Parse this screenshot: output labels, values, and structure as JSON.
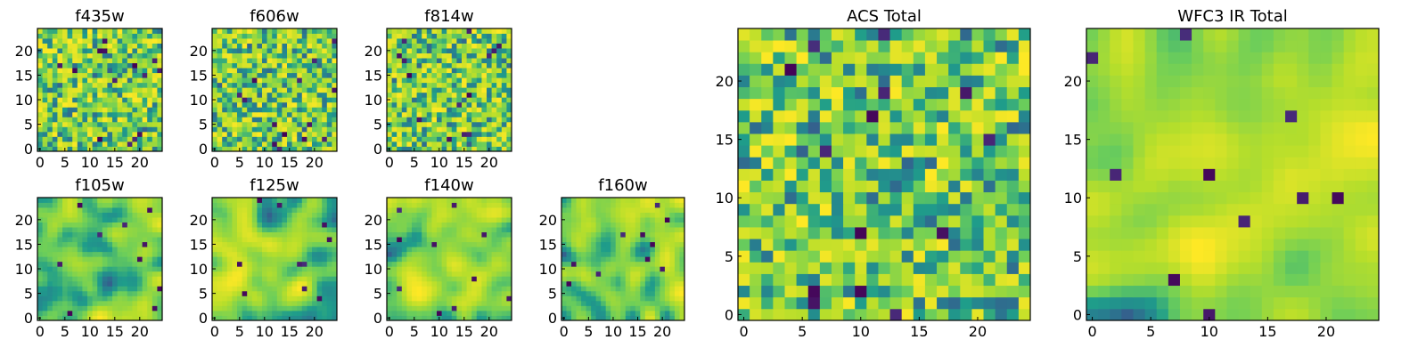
{
  "colors": {
    "low": "#440154",
    "mid": "#21918c",
    "high": "#fde725"
  },
  "chart_data": [
    {
      "type": "heatmap",
      "title": "f435w",
      "xlim": [
        0,
        24
      ],
      "ylim": [
        0,
        24
      ],
      "xticks": [
        0,
        5,
        10,
        15,
        20
      ],
      "yticks": [
        0,
        5,
        10,
        15,
        20
      ],
      "texture": "noisy",
      "seed": 11
    },
    {
      "type": "heatmap",
      "title": "f606w",
      "xlim": [
        0,
        24
      ],
      "ylim": [
        0,
        24
      ],
      "xticks": [
        0,
        5,
        10,
        15,
        20
      ],
      "yticks": [
        0,
        5,
        10,
        15,
        20
      ],
      "texture": "noisy",
      "seed": 23
    },
    {
      "type": "heatmap",
      "title": "f814w",
      "xlim": [
        0,
        24
      ],
      "ylim": [
        0,
        24
      ],
      "xticks": [
        0,
        5,
        10,
        15,
        20
      ],
      "yticks": [
        0,
        5,
        10,
        15,
        20
      ],
      "texture": "noisy",
      "seed": 37
    },
    {
      "type": "heatmap",
      "title": "f105w",
      "xlim": [
        0,
        24
      ],
      "ylim": [
        0,
        24
      ],
      "xticks": [
        0,
        5,
        10,
        15,
        20
      ],
      "yticks": [
        0,
        5,
        10,
        15,
        20
      ],
      "texture": "smooth",
      "seed": 41
    },
    {
      "type": "heatmap",
      "title": "f125w",
      "xlim": [
        0,
        24
      ],
      "ylim": [
        0,
        24
      ],
      "xticks": [
        0,
        5,
        10,
        15,
        20
      ],
      "yticks": [
        0,
        5,
        10,
        15,
        20
      ],
      "texture": "smooth",
      "seed": 53
    },
    {
      "type": "heatmap",
      "title": "f140w",
      "xlim": [
        0,
        24
      ],
      "ylim": [
        0,
        24
      ],
      "xticks": [
        0,
        5,
        10,
        15,
        20
      ],
      "yticks": [
        0,
        5,
        10,
        15,
        20
      ],
      "texture": "smooth",
      "seed": 67
    },
    {
      "type": "heatmap",
      "title": "f160w",
      "xlim": [
        0,
        24
      ],
      "ylim": [
        0,
        24
      ],
      "xticks": [
        0,
        5,
        10,
        15,
        20
      ],
      "yticks": [
        0,
        5,
        10,
        15,
        20
      ],
      "texture": "smooth",
      "seed": 79
    },
    {
      "type": "heatmap",
      "title": "ACS Total",
      "xlim": [
        0,
        24
      ],
      "ylim": [
        0,
        24
      ],
      "xticks": [
        0,
        5,
        10,
        15,
        20
      ],
      "yticks": [
        0,
        5,
        10,
        15,
        20
      ],
      "texture": "noisy",
      "seed": 83
    },
    {
      "type": "heatmap",
      "title": "WFC3 IR Total",
      "xlim": [
        0,
        24
      ],
      "ylim": [
        0,
        24
      ],
      "xticks": [
        0,
        5,
        10,
        15,
        20
      ],
      "yticks": [
        0,
        5,
        10,
        15,
        20
      ],
      "texture": "smooth",
      "seed": 97
    }
  ]
}
